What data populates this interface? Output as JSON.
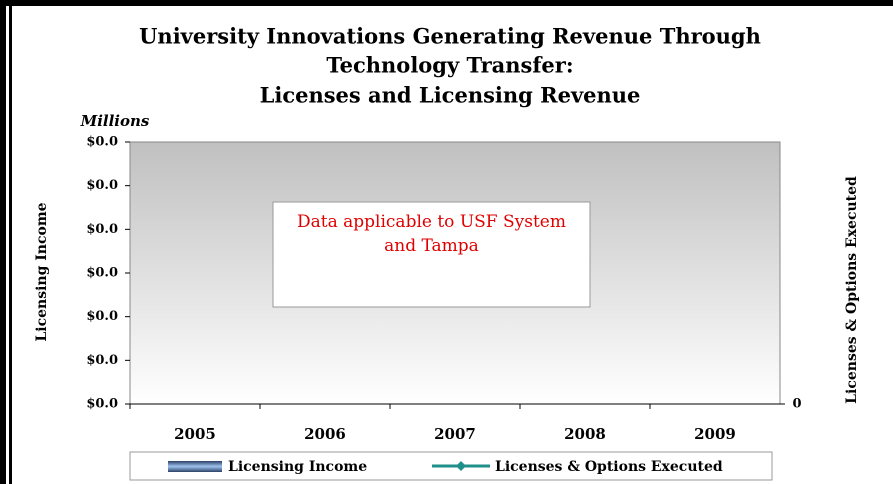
{
  "chart_data": {
    "type": "bar",
    "title": [
      "University Innovations Generating Revenue Through",
      "Technology Transfer:",
      "Licenses and Licensing Revenue"
    ],
    "units_label": "Millions",
    "y_label": "Licensing Income",
    "y2_label": "Licenses & Options Executed",
    "annotation": "Data applicable to USF System and Tampa",
    "categories": [
      "2005",
      "2006",
      "2007",
      "2008",
      "2009"
    ],
    "series": [
      {
        "name": "Licensing Income",
        "type": "bar",
        "color": "#6f9ad6",
        "values": [
          null,
          null,
          null,
          null,
          null
        ]
      },
      {
        "name": "Licenses & Options Executed",
        "type": "line",
        "color": "#1f8f8a",
        "axis": "y2",
        "values": [
          null,
          null,
          null,
          null,
          null
        ]
      }
    ],
    "ylim": [
      0,
      1.2e-06
    ],
    "yticks": [
      {
        "value": 0,
        "label": "$0.0"
      },
      {
        "value": 2e-07,
        "label": "$0.0"
      },
      {
        "value": 4e-07,
        "label": "$0.0"
      },
      {
        "value": 6e-07,
        "label": "$0.0"
      },
      {
        "value": 8e-07,
        "label": "$0.0"
      },
      {
        "value": 1e-06,
        "label": "$0.0"
      },
      {
        "value": 1.2e-06,
        "label": "$0.0"
      }
    ],
    "y2lim": [
      0,
      1
    ],
    "y2ticks": [
      0
    ]
  }
}
